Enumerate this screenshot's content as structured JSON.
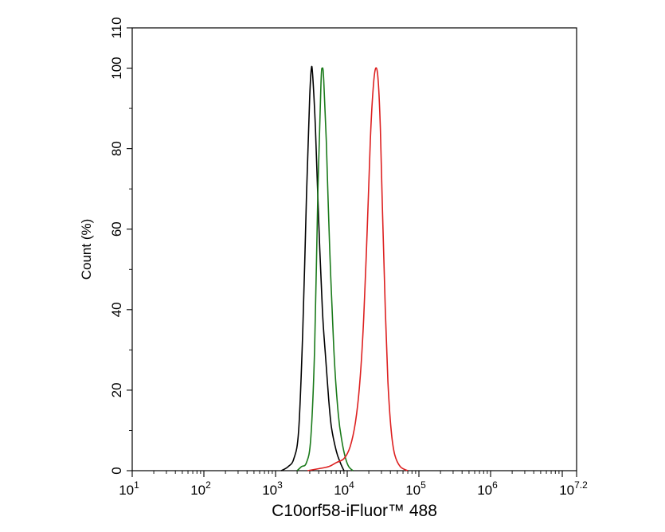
{
  "chart_data": {
    "type": "line",
    "title": "",
    "xlabel": "C10orf58-iFluor™ 488",
    "ylabel": "Count  (%)",
    "x_scale": "log10",
    "xlim": [
      10,
      15848932
    ],
    "ylim": [
      0,
      110
    ],
    "x_ticks": [
      {
        "base": "10",
        "exp": "1",
        "value": 10
      },
      {
        "base": "10",
        "exp": "2",
        "value": 100
      },
      {
        "base": "10",
        "exp": "3",
        "value": 1000
      },
      {
        "base": "10",
        "exp": "4",
        "value": 10000
      },
      {
        "base": "10",
        "exp": "5",
        "value": 100000
      },
      {
        "base": "10",
        "exp": "6",
        "value": 1000000
      },
      {
        "base": "10",
        "exp": "7.2",
        "value": 15848932
      }
    ],
    "y_ticks": [
      "0",
      "20",
      "40",
      "60",
      "80",
      "100",
      "110"
    ],
    "grid": false,
    "legend": "none",
    "series": [
      {
        "color": "#000000",
        "x": [
          1200,
          1500,
          1800,
          2100,
          2400,
          2700,
          3000,
          3160,
          3300,
          3600,
          4000,
          4500,
          5000,
          5500,
          6000,
          7000,
          8000,
          9000
        ],
        "y": [
          0,
          1,
          3,
          10,
          35,
          68,
          93,
          100,
          98,
          85,
          62,
          40,
          28,
          18,
          11,
          5,
          2,
          0
        ]
      },
      {
        "color": "#1a7a1a",
        "x": [
          2000,
          2300,
          2700,
          3100,
          3500,
          3900,
          4300,
          4500,
          4700,
          5100,
          5700,
          6500,
          7500,
          8500,
          9500,
          10500,
          12000
        ],
        "y": [
          0,
          1,
          2,
          8,
          30,
          70,
          96,
          100,
          97,
          82,
          55,
          30,
          14,
          7,
          3,
          1,
          0
        ]
      },
      {
        "color": "#dd2020",
        "x": [
          2800,
          4000,
          5500,
          7000,
          9000,
          11000,
          13000,
          15000,
          17000,
          19000,
          21000,
          23000,
          25000,
          27000,
          29000,
          31000,
          34000,
          37000,
          41000,
          46000,
          55000,
          70000
        ],
        "y": [
          0,
          0.5,
          1,
          2,
          3,
          6,
          12,
          22,
          38,
          60,
          82,
          95,
          100,
          97,
          85,
          65,
          40,
          22,
          10,
          4,
          1,
          0
        ]
      }
    ]
  }
}
